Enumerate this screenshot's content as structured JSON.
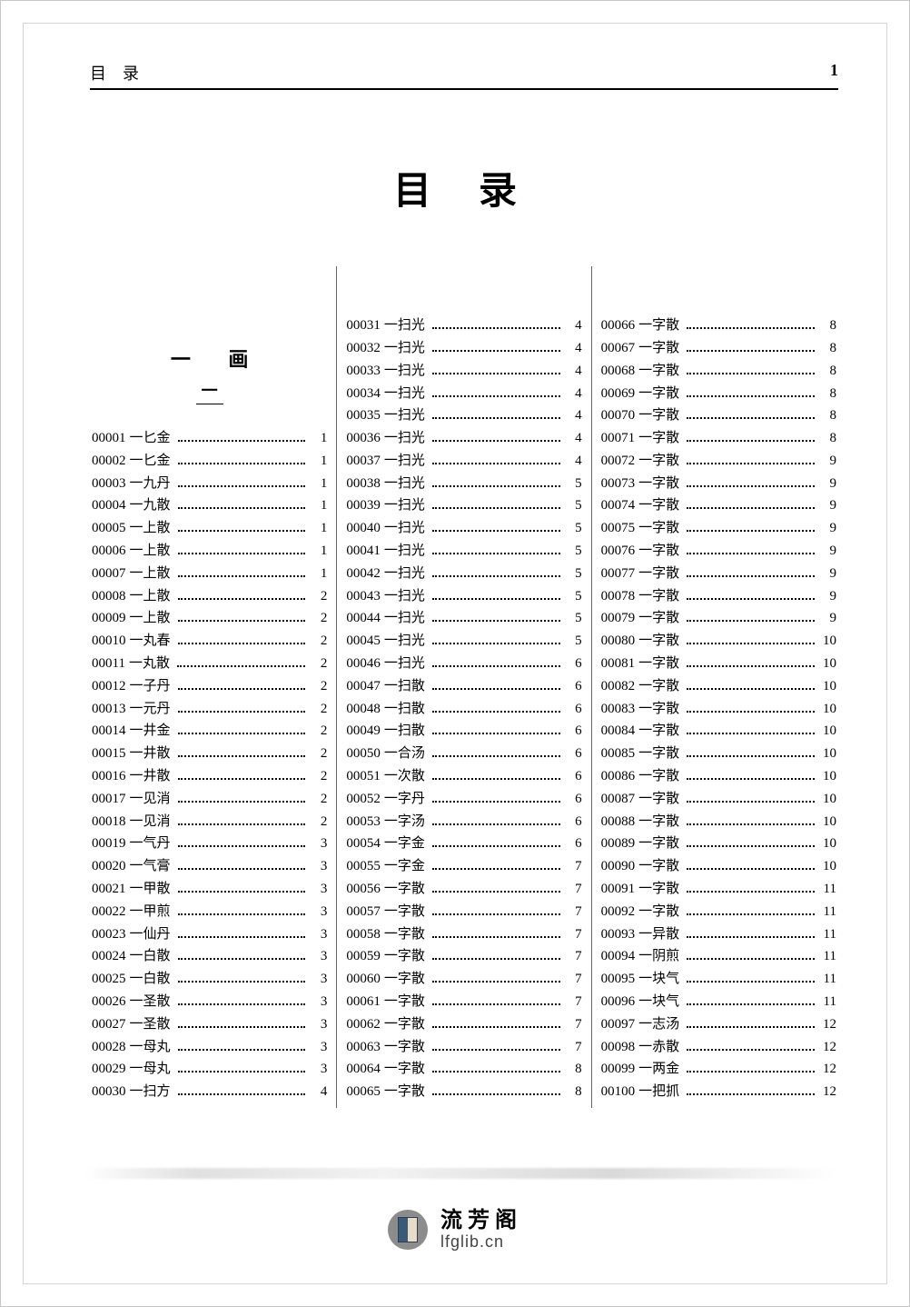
{
  "header": {
    "left": "目录",
    "right_page": "1"
  },
  "title": "目录",
  "section": {
    "stroke_heading": "一 画",
    "sub_heading": "一"
  },
  "footer": {
    "brand": "流芳阁",
    "url": "lfglib.cn"
  },
  "columns": [
    [
      {
        "code": "00001",
        "name": "一匕金",
        "pg": "1"
      },
      {
        "code": "00002",
        "name": "一匕金",
        "pg": "1"
      },
      {
        "code": "00003",
        "name": "一九丹",
        "pg": "1"
      },
      {
        "code": "00004",
        "name": "一九散",
        "pg": "1"
      },
      {
        "code": "00005",
        "name": "一上散",
        "pg": "1"
      },
      {
        "code": "00006",
        "name": "一上散",
        "pg": "1"
      },
      {
        "code": "00007",
        "name": "一上散",
        "pg": "1"
      },
      {
        "code": "00008",
        "name": "一上散",
        "pg": "2"
      },
      {
        "code": "00009",
        "name": "一上散",
        "pg": "2"
      },
      {
        "code": "00010",
        "name": "一丸春",
        "pg": "2"
      },
      {
        "code": "00011",
        "name": "一丸散",
        "pg": "2"
      },
      {
        "code": "00012",
        "name": "一子丹",
        "pg": "2"
      },
      {
        "code": "00013",
        "name": "一元丹",
        "pg": "2"
      },
      {
        "code": "00014",
        "name": "一井金",
        "pg": "2"
      },
      {
        "code": "00015",
        "name": "一井散",
        "pg": "2"
      },
      {
        "code": "00016",
        "name": "一井散",
        "pg": "2"
      },
      {
        "code": "00017",
        "name": "一见消",
        "pg": "2"
      },
      {
        "code": "00018",
        "name": "一见消",
        "pg": "2"
      },
      {
        "code": "00019",
        "name": "一气丹",
        "pg": "3"
      },
      {
        "code": "00020",
        "name": "一气膏",
        "pg": "3"
      },
      {
        "code": "00021",
        "name": "一甲散",
        "pg": "3"
      },
      {
        "code": "00022",
        "name": "一甲煎",
        "pg": "3"
      },
      {
        "code": "00023",
        "name": "一仙丹",
        "pg": "3"
      },
      {
        "code": "00024",
        "name": "一白散",
        "pg": "3"
      },
      {
        "code": "00025",
        "name": "一白散",
        "pg": "3"
      },
      {
        "code": "00026",
        "name": "一圣散",
        "pg": "3"
      },
      {
        "code": "00027",
        "name": "一圣散",
        "pg": "3"
      },
      {
        "code": "00028",
        "name": "一母丸",
        "pg": "3"
      },
      {
        "code": "00029",
        "name": "一母丸",
        "pg": "3"
      },
      {
        "code": "00030",
        "name": "一扫方",
        "pg": "4"
      }
    ],
    [
      {
        "code": "00031",
        "name": "一扫光",
        "pg": "4"
      },
      {
        "code": "00032",
        "name": "一扫光",
        "pg": "4"
      },
      {
        "code": "00033",
        "name": "一扫光",
        "pg": "4"
      },
      {
        "code": "00034",
        "name": "一扫光",
        "pg": "4"
      },
      {
        "code": "00035",
        "name": "一扫光",
        "pg": "4"
      },
      {
        "code": "00036",
        "name": "一扫光",
        "pg": "4"
      },
      {
        "code": "00037",
        "name": "一扫光",
        "pg": "4"
      },
      {
        "code": "00038",
        "name": "一扫光",
        "pg": "5"
      },
      {
        "code": "00039",
        "name": "一扫光",
        "pg": "5"
      },
      {
        "code": "00040",
        "name": "一扫光",
        "pg": "5"
      },
      {
        "code": "00041",
        "name": "一扫光",
        "pg": "5"
      },
      {
        "code": "00042",
        "name": "一扫光",
        "pg": "5"
      },
      {
        "code": "00043",
        "name": "一扫光",
        "pg": "5"
      },
      {
        "code": "00044",
        "name": "一扫光",
        "pg": "5"
      },
      {
        "code": "00045",
        "name": "一扫光",
        "pg": "5"
      },
      {
        "code": "00046",
        "name": "一扫光",
        "pg": "6"
      },
      {
        "code": "00047",
        "name": "一扫散",
        "pg": "6"
      },
      {
        "code": "00048",
        "name": "一扫散",
        "pg": "6"
      },
      {
        "code": "00049",
        "name": "一扫散",
        "pg": "6"
      },
      {
        "code": "00050",
        "name": "一合汤",
        "pg": "6"
      },
      {
        "code": "00051",
        "name": "一次散",
        "pg": "6"
      },
      {
        "code": "00052",
        "name": "一字丹",
        "pg": "6"
      },
      {
        "code": "00053",
        "name": "一字汤",
        "pg": "6"
      },
      {
        "code": "00054",
        "name": "一字金",
        "pg": "6"
      },
      {
        "code": "00055",
        "name": "一字金",
        "pg": "7"
      },
      {
        "code": "00056",
        "name": "一字散",
        "pg": "7"
      },
      {
        "code": "00057",
        "name": "一字散",
        "pg": "7"
      },
      {
        "code": "00058",
        "name": "一字散",
        "pg": "7"
      },
      {
        "code": "00059",
        "name": "一字散",
        "pg": "7"
      },
      {
        "code": "00060",
        "name": "一字散",
        "pg": "7"
      },
      {
        "code": "00061",
        "name": "一字散",
        "pg": "7"
      },
      {
        "code": "00062",
        "name": "一字散",
        "pg": "7"
      },
      {
        "code": "00063",
        "name": "一字散",
        "pg": "7"
      },
      {
        "code": "00064",
        "name": "一字散",
        "pg": "8"
      },
      {
        "code": "00065",
        "name": "一字散",
        "pg": "8"
      }
    ],
    [
      {
        "code": "00066",
        "name": "一字散",
        "pg": "8"
      },
      {
        "code": "00067",
        "name": "一字散",
        "pg": "8"
      },
      {
        "code": "00068",
        "name": "一字散",
        "pg": "8"
      },
      {
        "code": "00069",
        "name": "一字散",
        "pg": "8"
      },
      {
        "code": "00070",
        "name": "一字散",
        "pg": "8"
      },
      {
        "code": "00071",
        "name": "一字散",
        "pg": "8"
      },
      {
        "code": "00072",
        "name": "一字散",
        "pg": "9"
      },
      {
        "code": "00073",
        "name": "一字散",
        "pg": "9"
      },
      {
        "code": "00074",
        "name": "一字散",
        "pg": "9"
      },
      {
        "code": "00075",
        "name": "一字散",
        "pg": "9"
      },
      {
        "code": "00076",
        "name": "一字散",
        "pg": "9"
      },
      {
        "code": "00077",
        "name": "一字散",
        "pg": "9"
      },
      {
        "code": "00078",
        "name": "一字散",
        "pg": "9"
      },
      {
        "code": "00079",
        "name": "一字散",
        "pg": "9"
      },
      {
        "code": "00080",
        "name": "一字散",
        "pg": "10"
      },
      {
        "code": "00081",
        "name": "一字散",
        "pg": "10"
      },
      {
        "code": "00082",
        "name": "一字散",
        "pg": "10"
      },
      {
        "code": "00083",
        "name": "一字散",
        "pg": "10"
      },
      {
        "code": "00084",
        "name": "一字散",
        "pg": "10"
      },
      {
        "code": "00085",
        "name": "一字散",
        "pg": "10"
      },
      {
        "code": "00086",
        "name": "一字散",
        "pg": "10"
      },
      {
        "code": "00087",
        "name": "一字散",
        "pg": "10"
      },
      {
        "code": "00088",
        "name": "一字散",
        "pg": "10"
      },
      {
        "code": "00089",
        "name": "一字散",
        "pg": "10"
      },
      {
        "code": "00090",
        "name": "一字散",
        "pg": "10"
      },
      {
        "code": "00091",
        "name": "一字散",
        "pg": "11"
      },
      {
        "code": "00092",
        "name": "一字散",
        "pg": "11"
      },
      {
        "code": "00093",
        "name": "一异散",
        "pg": "11"
      },
      {
        "code": "00094",
        "name": "一阴煎",
        "pg": "11"
      },
      {
        "code": "00095",
        "name": "一块气",
        "pg": "11"
      },
      {
        "code": "00096",
        "name": "一块气",
        "pg": "11"
      },
      {
        "code": "00097",
        "name": "一志汤",
        "pg": "12"
      },
      {
        "code": "00098",
        "name": "一赤散",
        "pg": "12"
      },
      {
        "code": "00099",
        "name": "一两金",
        "pg": "12"
      },
      {
        "code": "00100",
        "name": "一把抓",
        "pg": "12"
      }
    ]
  ]
}
